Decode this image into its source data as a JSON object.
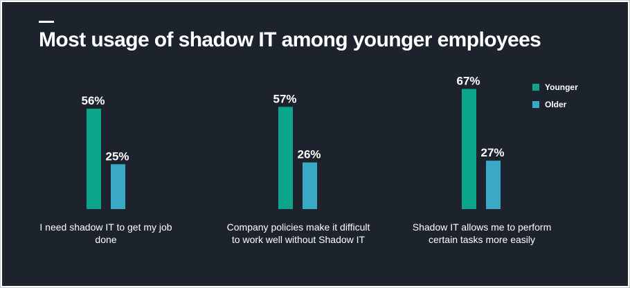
{
  "chart_data": {
    "type": "bar",
    "title": "Most usage of shadow IT among younger employees",
    "categories": [
      [
        "I need shadow IT to get my job",
        "done"
      ],
      [
        "Company policies make it difficult",
        "to work well without Shadow IT"
      ],
      [
        "Shadow IT allows me to perform",
        "certain tasks more easily"
      ]
    ],
    "series": [
      {
        "name": "Younger",
        "values": [
          56,
          57,
          67
        ],
        "color": "#0aa58a"
      },
      {
        "name": "Older",
        "values": [
          25,
          26,
          27
        ],
        "color": "#3aa9c6"
      }
    ],
    "value_suffix": "%",
    "ylim": [
      0,
      100
    ],
    "legend_position": "top-right",
    "xlabel": "",
    "ylabel": "",
    "grid": false
  },
  "colors": {
    "background": "#1c232c",
    "text": "#ffffff"
  }
}
